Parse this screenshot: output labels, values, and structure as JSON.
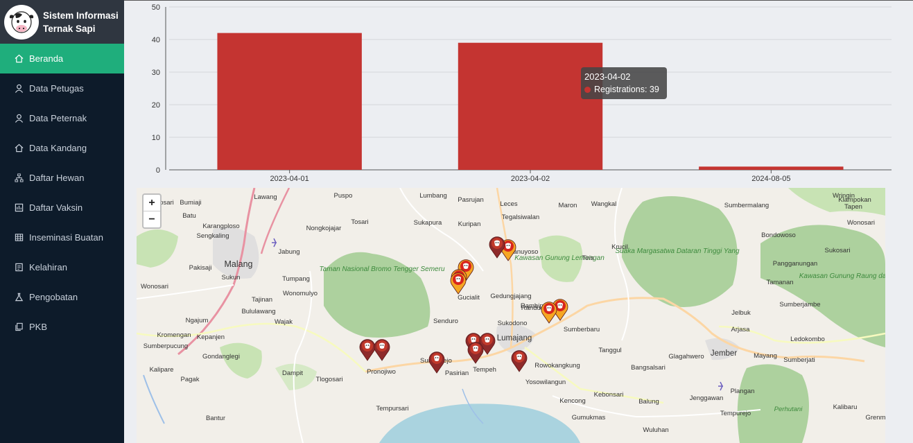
{
  "app": {
    "title": "Sistem Informasi Ternak Sapi"
  },
  "sidebar": {
    "items": [
      {
        "label": "Beranda",
        "icon": "home-icon",
        "active": true
      },
      {
        "label": "Data Petugas",
        "icon": "user-icon"
      },
      {
        "label": "Data Peternak",
        "icon": "user-icon"
      },
      {
        "label": "Data Kandang",
        "icon": "home-icon"
      },
      {
        "label": "Daftar Hewan",
        "icon": "sitemap-icon"
      },
      {
        "label": "Daftar Vaksin",
        "icon": "image-icon"
      },
      {
        "label": "Inseminasi Buatan",
        "icon": "table-icon"
      },
      {
        "label": "Kelahiran",
        "icon": "document-icon"
      },
      {
        "label": "Pengobatan",
        "icon": "flask-icon"
      },
      {
        "label": "PKB",
        "icon": "copy-icon"
      }
    ]
  },
  "chart_data": {
    "type": "bar",
    "categories": [
      "2023-04-01",
      "2023-04-02",
      "2024-08-05"
    ],
    "series": [
      {
        "name": "Registrations",
        "values": [
          42,
          39,
          1
        ]
      }
    ],
    "ylim": [
      0,
      50
    ],
    "yticks": [
      0,
      10,
      20,
      30,
      40,
      50
    ],
    "bar_color": "#c43431",
    "grid": true
  },
  "tooltip": {
    "title": "2023-04-02",
    "label": "Registrations: 39"
  },
  "map": {
    "zoom_in": "+",
    "zoom_out": "−",
    "areas": [
      {
        "label": "Taman Nasional Bromo Tengger Semeru"
      },
      {
        "label": "Suaka Margasatwa Dataran Tinggi Yang"
      },
      {
        "label": "Kawasan Gunung Lemongan"
      },
      {
        "label": "Kawasan Gunung Raung dan Gunung Ijen"
      }
    ],
    "places": [
      "Lawang",
      "Puspo",
      "Lumbang",
      "Pasrujan",
      "Leces",
      "Maron",
      "Wangkal",
      "Sumbermalang",
      "Wringin",
      "Klampokan",
      "Tapen",
      "Batu",
      "Bumiaji",
      "Karangploso",
      "Singosari",
      "Sengkaling",
      "Nongkojajar",
      "Tosari",
      "Sukapura",
      "Kuripan",
      "Tegalsiwalan",
      "Bondowoso",
      "Wonosari",
      "Jabung",
      "Malang",
      "Sukun",
      "Tumpang",
      "Ranuyoso",
      "Tiris",
      "Krucil",
      "Sukosari",
      "Pakisaji",
      "Tajinan",
      "Wonosari",
      "Wonomulyo",
      "Gucialit",
      "Gedungjajang",
      "Pangganungan",
      "Tamanan",
      "Bululawang",
      "Wajak",
      "Ngajum",
      "Senduro",
      "Sukodono",
      "Randuagung",
      "Sumberbaru",
      "Jelbuk",
      "Sumberjambe",
      "Kromengan",
      "Kepanjen",
      "Lumajang",
      "Tanggul",
      "Arjasa",
      "Ledokombo",
      "Sumberpucung",
      "Gondanglegi",
      "Pronojiwo",
      "Sumberejo",
      "Tempeh",
      "Rowokangkung",
      "Glagahwero",
      "Jember",
      "Mayang",
      "Sumberjati",
      "Kalipare",
      "Pagak",
      "Dampit",
      "Tlogosari",
      "Pasirian",
      "Yosowilangun",
      "Bangsalsari",
      "Kebonsari",
      "Plangan",
      "Kencong",
      "Balung",
      "Jenggawan",
      "Kalibaru",
      "Gumukmas",
      "Tempursari",
      "Bantur",
      "Wuluhan",
      "Tempurejo",
      "Perhutani",
      "Grenm",
      "Rambipuji"
    ],
    "markers": [
      {
        "type": "cow-pin-orange"
      },
      {
        "type": "cow-pin-orange"
      },
      {
        "type": "cow-pin-orange"
      },
      {
        "type": "cow-pin-orange"
      },
      {
        "type": "cow-pin-orange"
      },
      {
        "type": "cow-pin-orange"
      },
      {
        "type": "cow-pin-dark-red"
      },
      {
        "type": "cow-pin-dark-red"
      },
      {
        "type": "cow-pin-dark-red"
      },
      {
        "type": "cow-pin-dark-red"
      },
      {
        "type": "cow-pin-dark-red"
      },
      {
        "type": "cow-pin-dark-red"
      },
      {
        "type": "cow-pin-dark-red"
      },
      {
        "type": "cow-pin-dark-red"
      }
    ]
  },
  "colors": {
    "sidebar": "#0d1b2a",
    "brand": "#2f3640",
    "active": "#1fae7c",
    "bar": "#c43431",
    "forest": "#a7d39a",
    "sea": "#aad3df"
  }
}
